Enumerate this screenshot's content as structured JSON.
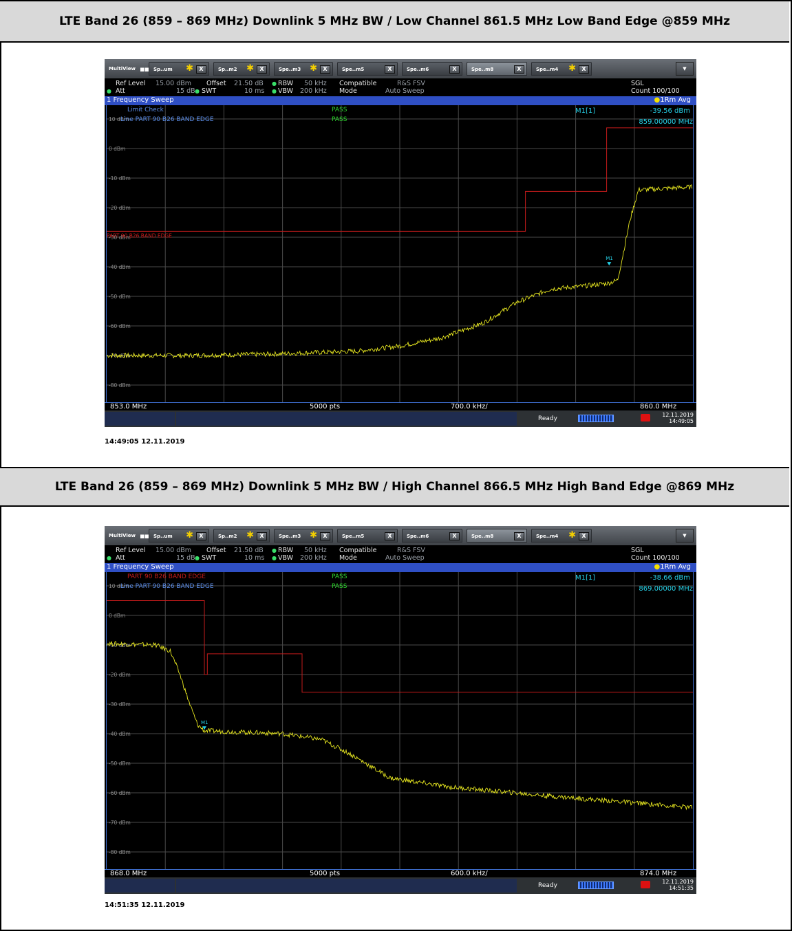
{
  "sections": [
    {
      "header": "LTE Band 26 (859 – 869 MHz) Downlink 5 MHz BW / Low Channel 861.5 MHz Low Band Edge @859 MHz",
      "timestamp": "14:49:05  12.11.2019",
      "analyzer": {
        "tabs": [
          "Sp..um",
          "Sp..m2",
          "Spe..m3",
          "Spe..m5",
          "Spe..m6",
          "Spe..m8",
          "Spe..m4"
        ],
        "active_tab": 5,
        "multiview_label": "MultiView",
        "ref_level_label": "Ref Level",
        "ref_level": "15.00 dBm",
        "offset_label": "Offset",
        "offset": "21.50 dB",
        "rbw_label": "RBW",
        "rbw": "50 kHz",
        "mode_compat_label": "Compatible",
        "mode_compat": "R&S FSV",
        "att_label": "Att",
        "att": "15 dB",
        "swt_label": "SWT",
        "swt": "10 ms",
        "vbw_label": "VBW",
        "vbw": "200 kHz",
        "mode_label": "Mode",
        "mode": "Auto Sweep",
        "sgl": "SGL",
        "count": "Count 100/100",
        "sweep_title": "1 Frequency Sweep",
        "trace_mode": "1Rm Avg",
        "limit_lines": [
          "Limit Check",
          "Line PART 90 B26 BAND EDGE"
        ],
        "limit_results": [
          "PASS",
          "PASS"
        ],
        "limit_line_label": "PART 90 B26 BAND EDGE",
        "marker_label": "M1[1]",
        "marker_level": "-39.56 dBm",
        "marker_freq": "859.00000 MHz",
        "marker_tag": "M1",
        "y_ticks": [
          "10 dBm",
          "0 dBm",
          "-10 dBm",
          "-20 dBm",
          "-30 dBm",
          "-40 dBm",
          "-50 dBm",
          "-60 dBm",
          "-70 dBm",
          "-80 dBm"
        ],
        "start_freq": "853.0 MHz",
        "points": "5000 pts",
        "span_div": "700.0 kHz/",
        "stop_freq": "860.0 MHz",
        "status": "Ready",
        "status_date": "12.11.2019",
        "status_time": "14:49:05"
      },
      "chart_data": {
        "type": "line",
        "x_unit": "MHz",
        "y_unit": "dBm",
        "xlim": [
          853.0,
          860.0
        ],
        "ylim": [
          -90,
          15
        ],
        "trace": {
          "x": [
            853.0,
            854.0,
            855.0,
            856.0,
            856.5,
            857.0,
            857.5,
            857.9,
            858.3,
            858.7,
            859.0,
            859.1,
            859.15,
            859.25,
            859.35,
            860.0
          ],
          "y": [
            -70.0,
            -70.0,
            -69.5,
            -68.5,
            -66.8,
            -64.0,
            -59.0,
            -52.0,
            -47.5,
            -46.5,
            -45.5,
            -44.5,
            -38.0,
            -24.0,
            -14.0,
            -13.0
          ]
        },
        "limit_line": {
          "x": [
            853.0,
            858.0,
            858.0,
            858.97,
            858.97,
            860.0
          ],
          "y": [
            -28.0,
            -28.0,
            -14.5,
            -14.5,
            7.0,
            7.0
          ]
        },
        "marker": {
          "x": 859.0,
          "y": -39.56
        }
      }
    },
    {
      "header": "LTE Band 26 (859 – 869 MHz) Downlink 5 MHz BW / High Channel 866.5 MHz High Band Edge @869 MHz",
      "timestamp": "14:51:35  12.11.2019",
      "analyzer": {
        "tabs": [
          "Sp..um",
          "Sp..m2",
          "Spe..m3",
          "Spe..m5",
          "Spe..m6",
          "Spe..m8",
          "Spe..m4"
        ],
        "active_tab": 5,
        "multiview_label": "MultiView",
        "ref_level_label": "Ref Level",
        "ref_level": "15.00 dBm",
        "offset_label": "Offset",
        "offset": "21.50 dB",
        "rbw_label": "RBW",
        "rbw": "50 kHz",
        "mode_compat_label": "Compatible",
        "mode_compat": "R&S FSV",
        "att_label": "Att",
        "att": "15 dB",
        "swt_label": "SWT",
        "swt": "10 ms",
        "vbw_label": "VBW",
        "vbw": "200 kHz",
        "mode_label": "Mode",
        "mode": "Auto Sweep",
        "sgl": "SGL",
        "count": "Count 100/100",
        "sweep_title": "1 Frequency Sweep",
        "trace_mode": "1Rm Avg",
        "limit_lines": [
          "PART 90 B26 BAND EDGE",
          "Line PART 90 B26 BAND EDGE"
        ],
        "limit_results": [
          "PASS",
          "PASS"
        ],
        "limit_line_label": "",
        "marker_label": "M1[1]",
        "marker_level": "-38.66 dBm",
        "marker_freq": "869.00000 MHz",
        "marker_tag": "M1",
        "y_ticks": [
          "10 dBm",
          "0 dBm",
          "-10 dBm",
          "-20 dBm",
          "-30 dBm",
          "-40 dBm",
          "-50 dBm",
          "-60 dBm",
          "-70 dBm",
          "-80 dBm"
        ],
        "start_freq": "868.0 MHz",
        "points": "5000 pts",
        "span_div": "600.0 kHz/",
        "stop_freq": "874.0 MHz",
        "status": "Ready",
        "status_date": "12.11.2019",
        "status_time": "14:51:35"
      },
      "chart_data": {
        "type": "line",
        "x_unit": "MHz",
        "y_unit": "dBm",
        "xlim": [
          868.0,
          874.0
        ],
        "ylim": [
          -90,
          15
        ],
        "trace": {
          "x": [
            868.0,
            868.5,
            868.65,
            868.75,
            868.85,
            868.93,
            869.0,
            869.4,
            869.8,
            870.2,
            870.5,
            870.9,
            871.5,
            872.5,
            874.0
          ],
          "y": [
            -9.5,
            -10.0,
            -12.0,
            -20.0,
            -30.0,
            -37.0,
            -39.0,
            -39.5,
            -40.0,
            -42.0,
            -47.0,
            -55.0,
            -58.0,
            -61.0,
            -65.0
          ]
        },
        "limit_line": {
          "x": [
            868.0,
            869.0,
            869.0,
            869.03,
            869.03,
            870.0,
            870.0,
            874.0
          ],
          "y": [
            5.0,
            5.0,
            -20.0,
            -20.0,
            -13.0,
            -13.0,
            -26.0,
            -26.0
          ]
        },
        "marker": {
          "x": 869.0,
          "y": -38.66
        }
      }
    }
  ]
}
